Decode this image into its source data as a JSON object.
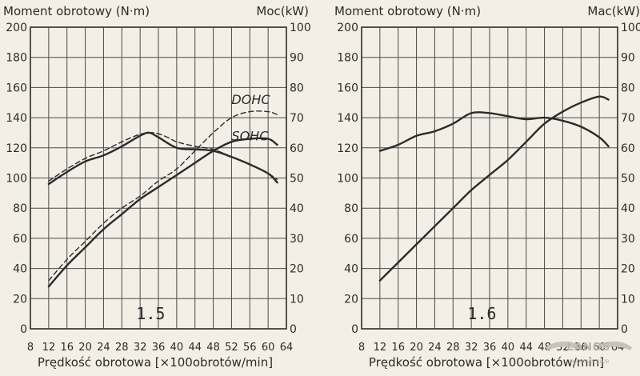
{
  "colors": {
    "background": "#f3efe6",
    "ink": "#2b2b2b",
    "grid": "#4a4a4a",
    "watermark": "#b9b4aa"
  },
  "watermark": {
    "brand": "LANOS",
    "sub": "UKRAINIAN CLUB",
    "icon": "winged-logo-icon"
  },
  "chart_data": [
    {
      "type": "line",
      "title": "",
      "stamp": "1.5",
      "xlabel": "Prędkość obrotowa [×100obrotów/min]",
      "ylabel_left": "Moment obrotowy (N·m)",
      "ylabel_right": "Moc(kW)",
      "xlim": [
        8,
        64
      ],
      "ylim_left": [
        0,
        200
      ],
      "ylim_right": [
        0,
        100
      ],
      "x_ticks": [
        "8",
        "12",
        "16",
        "20",
        "24",
        "28",
        "32",
        "36",
        "40",
        "44",
        "48",
        "52",
        "56",
        "60",
        "64"
      ],
      "y_left_ticks": [
        "0",
        "20",
        "40",
        "60",
        "80",
        "100",
        "120",
        "140",
        "160",
        "180",
        "200"
      ],
      "y_right_ticks": [
        "0",
        "10",
        "20",
        "30",
        "40",
        "50",
        "60",
        "70",
        "80",
        "90",
        "100"
      ],
      "grid": true,
      "curve_labels": [
        {
          "text": "DOHC",
          "x": 52,
          "y": 149
        },
        {
          "text": "SOHC",
          "x": 52,
          "y": 125
        }
      ],
      "series": [
        {
          "name": "SOHC",
          "quantity": "torque",
          "axis": "left",
          "style": "solid",
          "x": [
            12,
            16,
            20,
            24,
            28,
            32,
            34,
            36,
            40,
            44,
            48,
            52,
            56,
            60,
            62
          ],
          "y": [
            96,
            104,
            111,
            115,
            121,
            128,
            130,
            127,
            120,
            119,
            118,
            114,
            109,
            103,
            97
          ]
        },
        {
          "name": "DOHC",
          "quantity": "torque",
          "axis": "left",
          "style": "dashed",
          "x": [
            12,
            16,
            20,
            24,
            28,
            32,
            35,
            38,
            40,
            44,
            48,
            52,
            56,
            60,
            62
          ],
          "y": [
            98,
            106,
            113,
            118,
            124,
            129,
            130,
            127,
            124,
            121,
            119,
            114,
            109,
            103,
            99
          ]
        },
        {
          "name": "SOHC",
          "quantity": "power",
          "axis": "right",
          "style": "solid",
          "x": [
            12,
            16,
            20,
            24,
            28,
            32,
            36,
            40,
            44,
            48,
            52,
            56,
            60,
            62
          ],
          "y": [
            14,
            21,
            27,
            33,
            38,
            43,
            47,
            51,
            55,
            59,
            62,
            63,
            63,
            61
          ]
        },
        {
          "name": "DOHC",
          "quantity": "power",
          "axis": "right",
          "style": "dashed",
          "x": [
            12,
            16,
            20,
            24,
            28,
            32,
            36,
            40,
            44,
            48,
            52,
            56,
            60,
            62
          ],
          "y": [
            16,
            23,
            29,
            35,
            40,
            44,
            49,
            53,
            59,
            65,
            70,
            72,
            72,
            71
          ]
        }
      ]
    },
    {
      "type": "line",
      "title": "",
      "stamp": "1.6",
      "xlabel": "Prędkość obrotowa [×100obrotów/min]",
      "ylabel_left": "Moment obrotowy (N·m)",
      "ylabel_right": "Mac(kW)",
      "xlim": [
        8,
        64
      ],
      "ylim_left": [
        0,
        200
      ],
      "ylim_right": [
        0,
        100
      ],
      "x_ticks": [
        "8",
        "12",
        "16",
        "20",
        "24",
        "28",
        "32",
        "36",
        "40",
        "44",
        "48",
        "52",
        "56",
        "60",
        "64"
      ],
      "y_left_ticks": [
        "0",
        "20",
        "40",
        "60",
        "80",
        "100",
        "120",
        "140",
        "160",
        "180",
        "200"
      ],
      "y_right_ticks": [
        "0",
        "10",
        "20",
        "30",
        "40",
        "50",
        "60",
        "70",
        "80",
        "90",
        "100"
      ],
      "grid": true,
      "curve_labels": [],
      "series": [
        {
          "name": "",
          "quantity": "torque",
          "axis": "left",
          "style": "solid",
          "x": [
            12,
            16,
            20,
            24,
            28,
            32,
            36,
            40,
            44,
            48,
            52,
            56,
            60,
            62
          ],
          "y": [
            118,
            122,
            128,
            131,
            136,
            143,
            143,
            141,
            139,
            140,
            138,
            134,
            127,
            121
          ]
        },
        {
          "name": "",
          "quantity": "power",
          "axis": "right",
          "style": "solid",
          "x": [
            12,
            16,
            20,
            24,
            28,
            32,
            36,
            40,
            44,
            48,
            52,
            56,
            60,
            62
          ],
          "y": [
            16,
            22,
            28,
            34,
            40,
            46,
            51,
            56,
            62,
            68,
            72,
            75,
            77,
            76
          ]
        }
      ]
    }
  ]
}
